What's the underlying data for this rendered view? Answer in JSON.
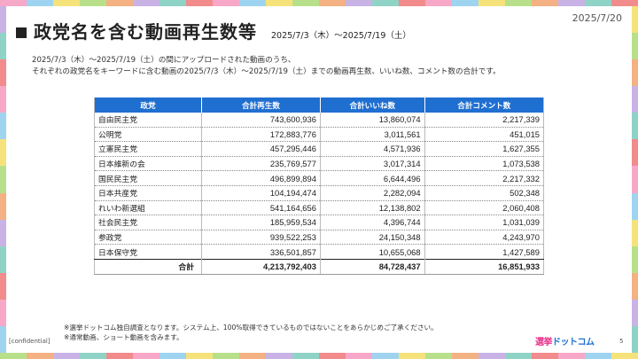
{
  "header": {
    "title": "政党名を含む動画再生数等",
    "period": "2025/7/3（木）～2025/7/19（土）",
    "date": "2025/7/20"
  },
  "description": {
    "line1": "2025/7/3（木）～2025/7/19（土）の間にアップロードされた動画のうち、",
    "line2": "それぞれの政党名をキーワードに含む動画の2025/7/3（木）～2025/7/19（土）までの動画再生数、いいね数、コメント数の合計です。"
  },
  "table": {
    "columns": [
      "政党",
      "合計再生数",
      "合計いいね数",
      "合計コメント数"
    ],
    "rows": [
      {
        "party": "自由民主党",
        "views": "743,600,936",
        "likes": "13,860,074",
        "comments": "2,217,339"
      },
      {
        "party": "公明党",
        "views": "172,883,776",
        "likes": "3,011,561",
        "comments": "451,015"
      },
      {
        "party": "立憲民主党",
        "views": "457,295,446",
        "likes": "4,571,936",
        "comments": "1,627,355"
      },
      {
        "party": "日本維新の会",
        "views": "235,769,577",
        "likes": "3,017,314",
        "comments": "1,073,538"
      },
      {
        "party": "国民民主党",
        "views": "496,899,894",
        "likes": "6,644,496",
        "comments": "2,217,332"
      },
      {
        "party": "日本共産党",
        "views": "104,194,474",
        "likes": "2,282,094",
        "comments": "502,348"
      },
      {
        "party": "れいわ新選組",
        "views": "541,164,656",
        "likes": "12,138,802",
        "comments": "2,060,408"
      },
      {
        "party": "社会民主党",
        "views": "185,959,534",
        "likes": "4,396,744",
        "comments": "1,031,039"
      },
      {
        "party": "参政党",
        "views": "939,522,253",
        "likes": "24,150,348",
        "comments": "4,243,970"
      },
      {
        "party": "日本保守党",
        "views": "336,501,857",
        "likes": "10,655,068",
        "comments": "1,427,589"
      }
    ],
    "total": {
      "label": "合計",
      "views": "4,213,792,403",
      "likes": "84,728,437",
      "comments": "16,851,933"
    }
  },
  "notes": {
    "note1": "※選挙ドットコム独自調査となります。システム上、100%取得できているものではないことをあらかじめご了承ください。",
    "note2": "※通常動画、ショート動画を含みます。"
  },
  "footer": {
    "confidential": "[confidential]",
    "logo_part1": "選挙",
    "logo_part2": "ドットコム",
    "page_number": "5"
  },
  "colors": {
    "header_blue": "#1f6fd1",
    "logo_pink": "#e8308a",
    "border_tiles": [
      "#f7a8c8",
      "#9fd4f0",
      "#f6e27a",
      "#b8e08a",
      "#f4b183",
      "#c9b3e6",
      "#8fd3c7",
      "#f28b8b"
    ]
  }
}
